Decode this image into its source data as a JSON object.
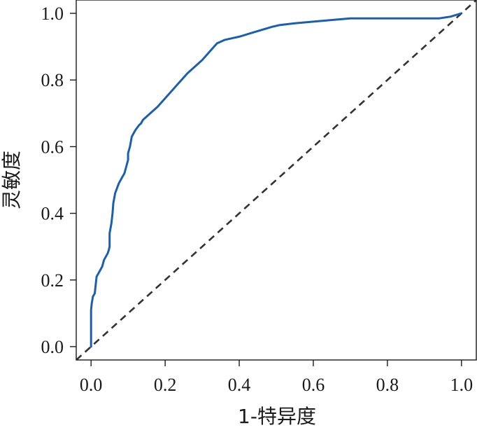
{
  "chart_data": {
    "type": "line",
    "title": "",
    "xlabel": "1-特异度",
    "ylabel": "灵敏度",
    "xlim": [
      -0.04,
      1.04
    ],
    "ylim": [
      -0.04,
      1.04
    ],
    "xticks": [
      "0.0",
      "0.2",
      "0.4",
      "0.6",
      "0.8",
      "1.0"
    ],
    "yticks": [
      "0.0",
      "0.2",
      "0.4",
      "0.6",
      "0.8",
      "1.0"
    ],
    "grid": false,
    "colors": {
      "roc": "#1f5fa6",
      "reference": "#333333"
    },
    "series": [
      {
        "style": "solid",
        "x": [
          0.0,
          0.0,
          0.002,
          0.005,
          0.01,
          0.015,
          0.02,
          0.03,
          0.035,
          0.045,
          0.048,
          0.05,
          0.05,
          0.055,
          0.058,
          0.06,
          0.065,
          0.075,
          0.085,
          0.09,
          0.095,
          0.1,
          0.1,
          0.105,
          0.11,
          0.12,
          0.13,
          0.135,
          0.14,
          0.16,
          0.18,
          0.2,
          0.22,
          0.24,
          0.26,
          0.28,
          0.3,
          0.32,
          0.34,
          0.36,
          0.38,
          0.4,
          0.43,
          0.46,
          0.49,
          0.51,
          0.55,
          0.6,
          0.7,
          0.75,
          0.8,
          0.85,
          0.9,
          0.94,
          0.97,
          1.0
        ],
        "y": [
          0.0,
          0.11,
          0.13,
          0.15,
          0.16,
          0.21,
          0.22,
          0.24,
          0.26,
          0.28,
          0.29,
          0.3,
          0.34,
          0.37,
          0.4,
          0.43,
          0.46,
          0.49,
          0.51,
          0.52,
          0.54,
          0.56,
          0.58,
          0.6,
          0.63,
          0.65,
          0.665,
          0.67,
          0.68,
          0.7,
          0.72,
          0.745,
          0.77,
          0.795,
          0.82,
          0.84,
          0.86,
          0.885,
          0.91,
          0.92,
          0.925,
          0.93,
          0.94,
          0.95,
          0.96,
          0.965,
          0.97,
          0.975,
          0.985,
          0.985,
          0.985,
          0.985,
          0.985,
          0.985,
          0.99,
          1.0
        ]
      },
      {
        "style": "dashed",
        "x": [
          -0.04,
          1.04
        ],
        "y": [
          -0.04,
          1.04
        ]
      }
    ]
  }
}
